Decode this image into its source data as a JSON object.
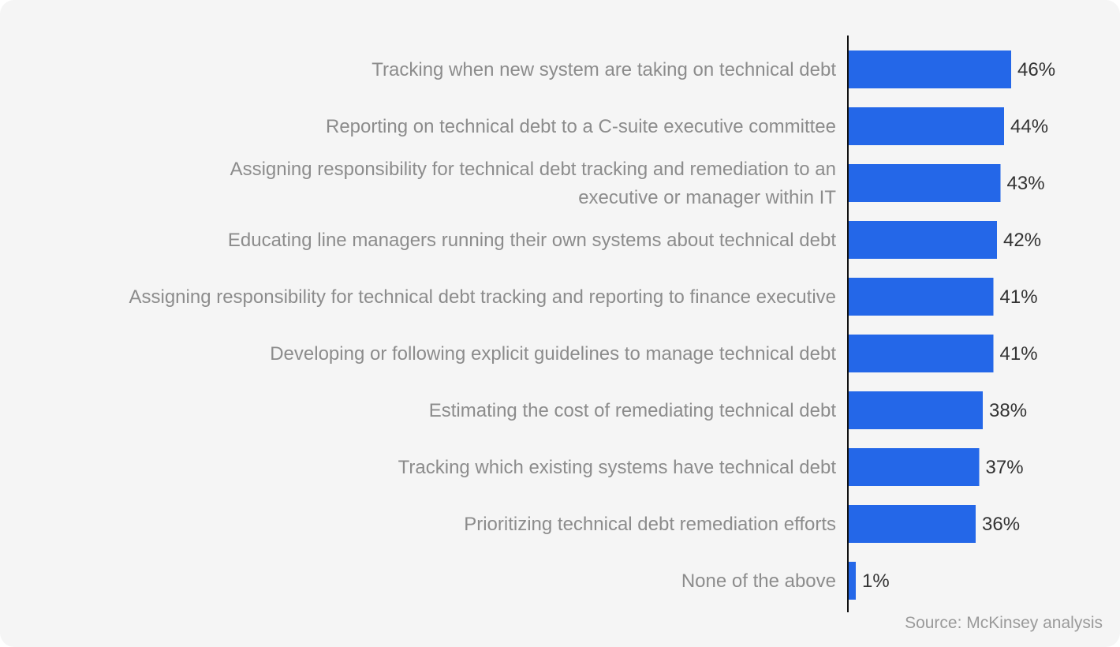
{
  "chart_data": {
    "type": "bar",
    "orientation": "horizontal",
    "categories": [
      [
        "Tracking when new system are taking on technical debt"
      ],
      [
        "Reporting on technical debt to a C-suite executive committee"
      ],
      [
        "Assigning responsibility for technical debt tracking and remediation to an",
        "executive or manager within IT"
      ],
      [
        "Educating line managers running their own systems about technical debt"
      ],
      [
        "Assigning responsibility for technical debt tracking and reporting to finance executive"
      ],
      [
        "Developing or following explicit guidelines to manage technical debt"
      ],
      [
        "Estimating the cost of remediating technical debt"
      ],
      [
        "Tracking which existing systems have technical debt"
      ],
      [
        "Prioritizing technical debt remediation efforts"
      ],
      [
        "None of the above"
      ]
    ],
    "values": [
      46,
      44,
      43,
      42,
      41,
      41,
      38,
      37,
      36,
      1
    ],
    "value_labels": [
      "46%",
      "44%",
      "43%",
      "42%",
      "41%",
      "41%",
      "38%",
      "37%",
      "36%",
      "1%"
    ],
    "unit": "%",
    "bar_color": "#2467e8",
    "grid": false
  },
  "source": "Source: McKinsey analysis"
}
